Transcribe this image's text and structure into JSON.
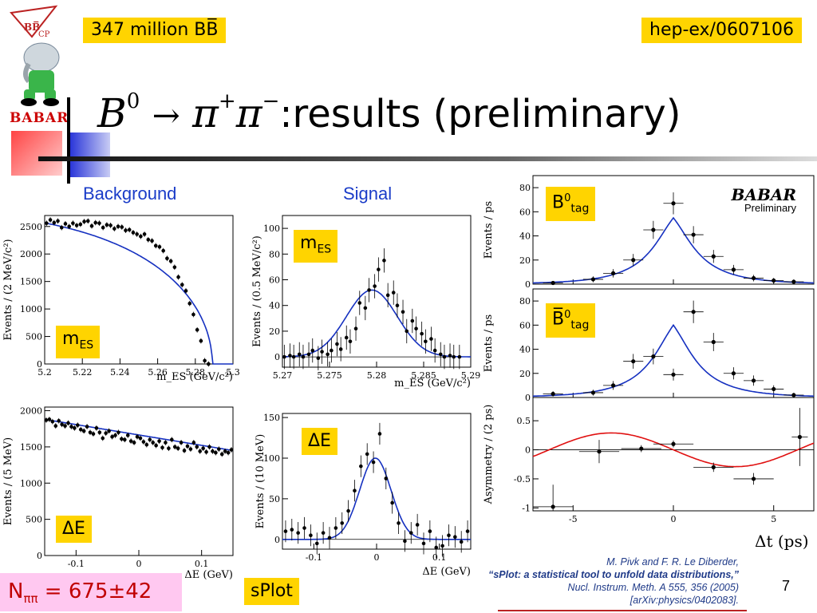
{
  "header": {
    "luminosity_label": "347 million BB̅",
    "arxiv_label": "hep-ex/0607106",
    "babar_logo_text": "BABAR",
    "title_formula_B": "B",
    "title_formula_sup": "0",
    "title_formula_arrow": "→",
    "title_formula_pi": "π",
    "title_formula_plus": "+",
    "title_formula_minus": "−",
    "title_text": ":results (preliminary)"
  },
  "columns": {
    "background": "Background",
    "signal": "Signal"
  },
  "labels": {
    "mes": "m",
    "mes_sub": "ES",
    "de": "ΔE",
    "b0tag": "B",
    "b0tag_sup": "0",
    "b0tag_sub": "tag",
    "b0bartag": "B̅",
    "b0bartag_sup": "0",
    "b0bartag_sub": "tag",
    "babar_pre_title": "BABAR",
    "babar_pre_sub": "Preliminary",
    "dt_xlabel": "Δt (ps)"
  },
  "footer": {
    "nsig_label": "N",
    "nsig_sub": "ππ",
    "nsig_value": " = 675±42",
    "splot": "sPlot",
    "cite_line1": "M. Pivk and F. R. Le Diberder,",
    "cite_line2": "“sPlot: a statistical tool to unfold data distributions,”",
    "cite_line3": "Nucl. Instrum. Meth. A 555, 356 (2005)",
    "cite_line4": "[arXiv:physics/0402083].",
    "page_number": "7"
  },
  "chart_data": [
    {
      "id": "bg_mes",
      "type": "scatter",
      "xlabel": "m_ES (GeV/c²)",
      "ylabel": "Events / (2 MeV/c²)",
      "xlim": [
        5.2,
        5.3
      ],
      "ylim": [
        0,
        2700
      ],
      "xticks": [
        "5.2",
        "5.22",
        "5.24",
        "5.26",
        "5.28",
        "5.3"
      ],
      "yticks": [
        "0",
        "500",
        "1000",
        "1500",
        "2000",
        "2500"
      ],
      "x": [
        5.201,
        5.203,
        5.205,
        5.207,
        5.209,
        5.211,
        5.213,
        5.215,
        5.217,
        5.219,
        5.221,
        5.223,
        5.225,
        5.227,
        5.229,
        5.231,
        5.233,
        5.235,
        5.237,
        5.239,
        5.241,
        5.243,
        5.245,
        5.247,
        5.249,
        5.251,
        5.253,
        5.255,
        5.257,
        5.259,
        5.261,
        5.263,
        5.265,
        5.267,
        5.269,
        5.271,
        5.273,
        5.275,
        5.277,
        5.279,
        5.281,
        5.283,
        5.285,
        5.287
      ],
      "values": [
        2560,
        2620,
        2570,
        2600,
        2480,
        2550,
        2500,
        2560,
        2520,
        2540,
        2590,
        2600,
        2510,
        2570,
        2560,
        2480,
        2530,
        2520,
        2460,
        2500,
        2490,
        2430,
        2440,
        2390,
        2360,
        2320,
        2360,
        2260,
        2240,
        2150,
        2130,
        2060,
        1920,
        1870,
        1760,
        1580,
        1440,
        1330,
        1100,
        900,
        620,
        420,
        60,
        0
      ],
      "curve": "argus",
      "annotation": "m_ES"
    },
    {
      "id": "sig_mes",
      "type": "scatter",
      "xlabel": "m_ES (GeV/c²)",
      "ylabel": "Events / (0.5 MeV/c²)",
      "xlim": [
        5.27,
        5.29
      ],
      "ylim": [
        -8,
        110
      ],
      "xticks": [
        "5.27",
        "5.275",
        "5.28",
        "5.285",
        "5.29"
      ],
      "yticks": [
        "0",
        "20",
        "40",
        "60",
        "80",
        "100"
      ],
      "x": [
        5.2702,
        5.2708,
        5.2712,
        5.2718,
        5.2722,
        5.2728,
        5.2732,
        5.2738,
        5.2742,
        5.2748,
        5.2752,
        5.2758,
        5.2762,
        5.2768,
        5.2772,
        5.2778,
        5.2782,
        5.2788,
        5.2792,
        5.2798,
        5.2802,
        5.2808,
        5.2812,
        5.2818,
        5.2822,
        5.2828,
        5.2832,
        5.2838,
        5.2842,
        5.2848,
        5.2852,
        5.2858,
        5.2862,
        5.2868,
        5.2872,
        5.2878,
        5.2882,
        5.2888
      ],
      "values": [
        0,
        1,
        0,
        2,
        0,
        2,
        5,
        -1,
        4,
        2,
        5,
        10,
        6,
        15,
        12,
        22,
        42,
        38,
        52,
        55,
        68,
        75,
        48,
        50,
        40,
        35,
        20,
        28,
        22,
        18,
        12,
        14,
        5,
        2,
        0,
        1,
        0,
        0
      ],
      "curve_mean": 5.2795,
      "curve_sigma": 0.0027,
      "curve_peak": 52,
      "annotation": "m_ES"
    },
    {
      "id": "bg_de",
      "type": "scatter",
      "xlabel": "ΔE (GeV)",
      "ylabel": "Events / (5 MeV)",
      "xlim": [
        -0.15,
        0.15
      ],
      "ylim": [
        0,
        2050
      ],
      "xticks": [
        "-0.1",
        "0",
        "0.1"
      ],
      "yticks": [
        "0",
        "500",
        "1000",
        "1500",
        "2000"
      ],
      "x": [
        -0.1475,
        -0.1425,
        -0.1375,
        -0.1325,
        -0.1275,
        -0.1225,
        -0.1175,
        -0.1125,
        -0.1075,
        -0.1025,
        -0.0975,
        -0.0925,
        -0.0875,
        -0.0825,
        -0.0775,
        -0.0725,
        -0.0675,
        -0.0625,
        -0.0575,
        -0.0525,
        -0.0475,
        -0.0425,
        -0.0375,
        -0.0325,
        -0.0275,
        -0.0225,
        -0.0175,
        -0.0125,
        -0.0075,
        -0.0025,
        0.0025,
        0.0075,
        0.0125,
        0.0175,
        0.0225,
        0.0275,
        0.0325,
        0.0375,
        0.0425,
        0.0475,
        0.0525,
        0.0575,
        0.0625,
        0.0675,
        0.0725,
        0.0775,
        0.0825,
        0.0875,
        0.0925,
        0.0975,
        0.1025,
        0.1075,
        0.1125,
        0.1175,
        0.1225,
        0.1275,
        0.1325,
        0.1375,
        0.1425,
        0.1475
      ],
      "values": [
        1870,
        1880,
        1850,
        1790,
        1860,
        1810,
        1790,
        1830,
        1780,
        1760,
        1800,
        1740,
        1720,
        1780,
        1700,
        1680,
        1760,
        1700,
        1620,
        1690,
        1720,
        1640,
        1660,
        1700,
        1610,
        1600,
        1660,
        1580,
        1560,
        1640,
        1620,
        1570,
        1530,
        1600,
        1560,
        1520,
        1580,
        1490,
        1560,
        1480,
        1600,
        1500,
        1480,
        1560,
        1450,
        1510,
        1470,
        1560,
        1500,
        1440,
        1480,
        1430,
        1500,
        1440,
        1420,
        1470,
        1400,
        1440,
        1420,
        1460
      ],
      "curve_start": 1880,
      "curve_end": 1450,
      "annotation": "ΔE"
    },
    {
      "id": "sig_de",
      "type": "scatter",
      "xlabel": "ΔE (GeV)",
      "ylabel": "Events / (10 MeV)",
      "xlim": [
        -0.15,
        0.15
      ],
      "ylim": [
        -12,
        155
      ],
      "xticks": [
        "-0.1",
        "0",
        "0.1"
      ],
      "yticks": [
        "0",
        "50",
        "100",
        "150"
      ],
      "x": [
        -0.145,
        -0.135,
        -0.125,
        -0.115,
        -0.105,
        -0.095,
        -0.085,
        -0.075,
        -0.065,
        -0.055,
        -0.045,
        -0.035,
        -0.025,
        -0.015,
        -0.005,
        0.005,
        0.015,
        0.025,
        0.035,
        0.045,
        0.055,
        0.065,
        0.075,
        0.085,
        0.095,
        0.105,
        0.115,
        0.125,
        0.135,
        0.145
      ],
      "values": [
        10,
        12,
        8,
        14,
        5,
        -5,
        8,
        2,
        14,
        20,
        35,
        60,
        90,
        105,
        95,
        130,
        75,
        45,
        20,
        -2,
        8,
        18,
        -5,
        10,
        -10,
        -8,
        5,
        3,
        -3,
        10
      ],
      "curve_mean": -0.002,
      "curve_sigma": 0.025,
      "curve_peak": 100,
      "annotation": "ΔE"
    },
    {
      "id": "dt_b0",
      "type": "scatter",
      "ylabel": "Events / ps",
      "xlim": [
        -7,
        7
      ],
      "ylim": [
        0,
        90
      ],
      "yticks": [
        "0",
        "20",
        "40",
        "60",
        "80"
      ],
      "x": [
        -6,
        -4,
        -3,
        -2,
        -1,
        0,
        1,
        2,
        3,
        4,
        5,
        6
      ],
      "values": [
        1,
        4,
        9,
        20,
        45,
        67,
        41,
        23,
        12,
        5,
        3,
        2
      ],
      "curve": "lifetime",
      "curve_peak": 55,
      "annotation": "B0 tag"
    },
    {
      "id": "dt_b0bar",
      "type": "scatter",
      "ylabel": "Events / ps",
      "xlim": [
        -7,
        7
      ],
      "ylim": [
        0,
        90
      ],
      "yticks": [
        "0",
        "20",
        "40",
        "60",
        "80"
      ],
      "x": [
        -6,
        -4,
        -3,
        -2,
        -1,
        0,
        1,
        2,
        3,
        4,
        5,
        6
      ],
      "values": [
        3,
        4,
        10,
        30,
        34,
        19,
        71,
        46,
        20,
        14,
        7,
        2
      ],
      "curve": "lifetime",
      "curve_peak": 60,
      "annotation": "B0bar tag"
    },
    {
      "id": "dt_asym",
      "type": "scatter",
      "ylabel": "Asymmetry / (2 ps)",
      "xlabel": "Δt (ps)",
      "xlim": [
        -7,
        7
      ],
      "ylim": [
        -1.05,
        0.9
      ],
      "xticks": [
        "-5",
        "0",
        "5"
      ],
      "yticks": [
        "-1",
        "-0.5",
        "0",
        "0.5"
      ],
      "x": [
        -6,
        -3.7,
        -1.6,
        0,
        2,
        4,
        6.3
      ],
      "values": [
        -0.98,
        -0.03,
        0.02,
        0.1,
        -0.3,
        -0.5,
        0.22
      ],
      "curve": "sinusoid",
      "curve_amplitude": 0.29
    }
  ]
}
